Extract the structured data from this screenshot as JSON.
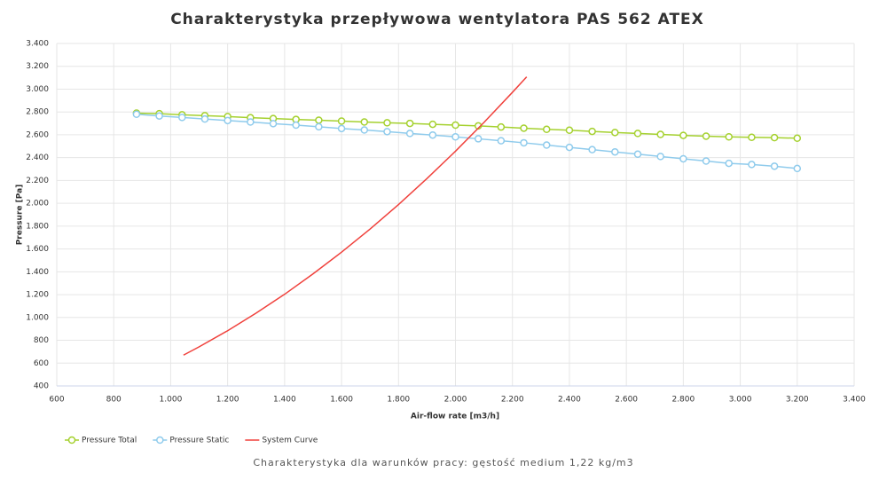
{
  "chart_data": {
    "type": "line",
    "title": "Charakterystyka przepływowa wentylatora PAS 562 ATEX",
    "xlabel": "Air-flow rate [m3/h]",
    "ylabel": "Pressure [Pa]",
    "footnote": "Charakterystyka dla warunków pracy: gęstość medium 1,22 kg/m3",
    "xlim": [
      600,
      3400
    ],
    "ylim": [
      400,
      3400
    ],
    "xticks": [
      600,
      800,
      {
        "value": 1000,
        "label": "1.000"
      },
      {
        "value": 1200,
        "label": "1.200"
      },
      {
        "value": 1400,
        "label": "1.400"
      },
      {
        "value": 1600,
        "label": "1.600"
      },
      {
        "value": 1800,
        "label": "1.800"
      },
      {
        "value": 2000,
        "label": "2.000"
      },
      {
        "value": 2200,
        "label": "2.200"
      },
      {
        "value": 2400,
        "label": "2.400"
      },
      {
        "value": 2600,
        "label": "2.600"
      },
      {
        "value": 2800,
        "label": "2.800"
      },
      {
        "value": 3000,
        "label": "3.000"
      },
      {
        "value": 3200,
        "label": "3.200"
      },
      {
        "value": 3400,
        "label": "3.400"
      }
    ],
    "yticks": [
      400,
      600,
      800,
      {
        "value": 1000,
        "label": "1.000"
      },
      {
        "value": 1200,
        "label": "1.200"
      },
      {
        "value": 1400,
        "label": "1.400"
      },
      {
        "value": 1600,
        "label": "1.600"
      },
      {
        "value": 1800,
        "label": "1.800"
      },
      {
        "value": 2000,
        "label": "2.000"
      },
      {
        "value": 2200,
        "label": "2.200"
      },
      {
        "value": 2400,
        "label": "2.400"
      },
      {
        "value": 2600,
        "label": "2.600"
      },
      {
        "value": 2800,
        "label": "2.800"
      },
      {
        "value": 3000,
        "label": "3.000"
      },
      {
        "value": 3200,
        "label": "3.200"
      },
      {
        "value": 3400,
        "label": "3.400"
      }
    ],
    "grid": true,
    "series": [
      {
        "name": "Pressure Total",
        "color": "#a5d12f",
        "markers": true,
        "x": [
          880,
          960,
          1040,
          1120,
          1200,
          1280,
          1360,
          1440,
          1520,
          1600,
          1680,
          1760,
          1840,
          1920,
          2000,
          2080,
          2160,
          2240,
          2320,
          2400,
          2480,
          2560,
          2640,
          2720,
          2800,
          2880,
          2960,
          3040,
          3120,
          3200
        ],
        "values": [
          2790,
          2785,
          2775,
          2768,
          2760,
          2750,
          2742,
          2735,
          2728,
          2720,
          2712,
          2705,
          2700,
          2692,
          2685,
          2678,
          2668,
          2658,
          2648,
          2640,
          2630,
          2620,
          2612,
          2603,
          2595,
          2588,
          2582,
          2578,
          2575,
          2570
        ]
      },
      {
        "name": "Pressure Static",
        "color": "#8fcbec",
        "markers": true,
        "x": [
          880,
          960,
          1040,
          1120,
          1200,
          1280,
          1360,
          1440,
          1520,
          1600,
          1680,
          1760,
          1840,
          1920,
          2000,
          2080,
          2160,
          2240,
          2320,
          2400,
          2480,
          2560,
          2640,
          2720,
          2800,
          2880,
          2960,
          3040,
          3120,
          3200
        ],
        "values": [
          2780,
          2765,
          2752,
          2738,
          2725,
          2712,
          2698,
          2685,
          2670,
          2655,
          2642,
          2628,
          2612,
          2598,
          2582,
          2565,
          2548,
          2530,
          2510,
          2490,
          2470,
          2450,
          2430,
          2410,
          2390,
          2370,
          2350,
          2340,
          2325,
          2305
        ]
      },
      {
        "name": "System Curve",
        "color": "#f0413c",
        "markers": false,
        "x": [
          1045,
          1100,
          1200,
          1300,
          1400,
          1500,
          1600,
          1700,
          1800,
          1900,
          2000,
          2100,
          2200,
          2250
        ],
        "values": [
          670,
          743,
          884,
          1038,
          1203,
          1382,
          1572,
          1774,
          1989,
          2217,
          2456,
          2708,
          2972,
          3108
        ]
      }
    ]
  }
}
